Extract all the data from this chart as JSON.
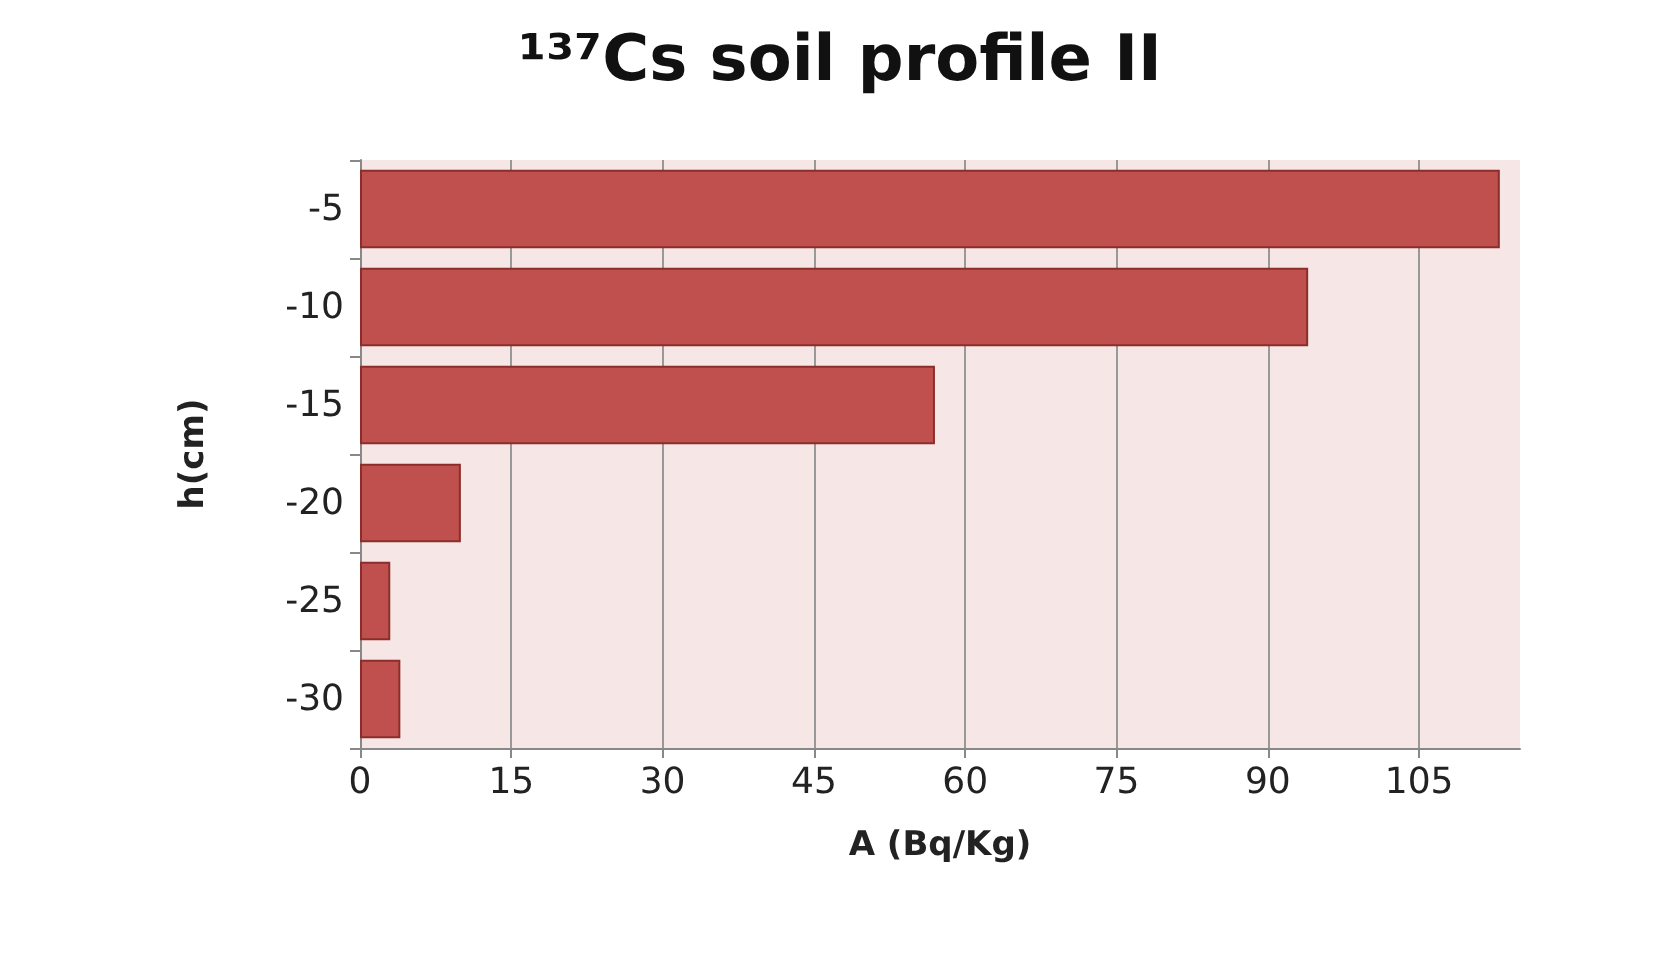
{
  "chart_data": {
    "type": "bar",
    "orientation": "horizontal",
    "title": "¹³⁷Cs soil profile II",
    "xlabel": "A (Bq/Kg)",
    "ylabel": "h(cm)",
    "categories": [
      "-5",
      "-10",
      "-15",
      "-20",
      "-25",
      "-30"
    ],
    "values": [
      113,
      94,
      57,
      10,
      3,
      4
    ],
    "color": "#c0504d",
    "xlim": [
      0,
      115
    ],
    "xticks": [
      0,
      15,
      30,
      45,
      60,
      75,
      90,
      105
    ],
    "grid": "x"
  }
}
